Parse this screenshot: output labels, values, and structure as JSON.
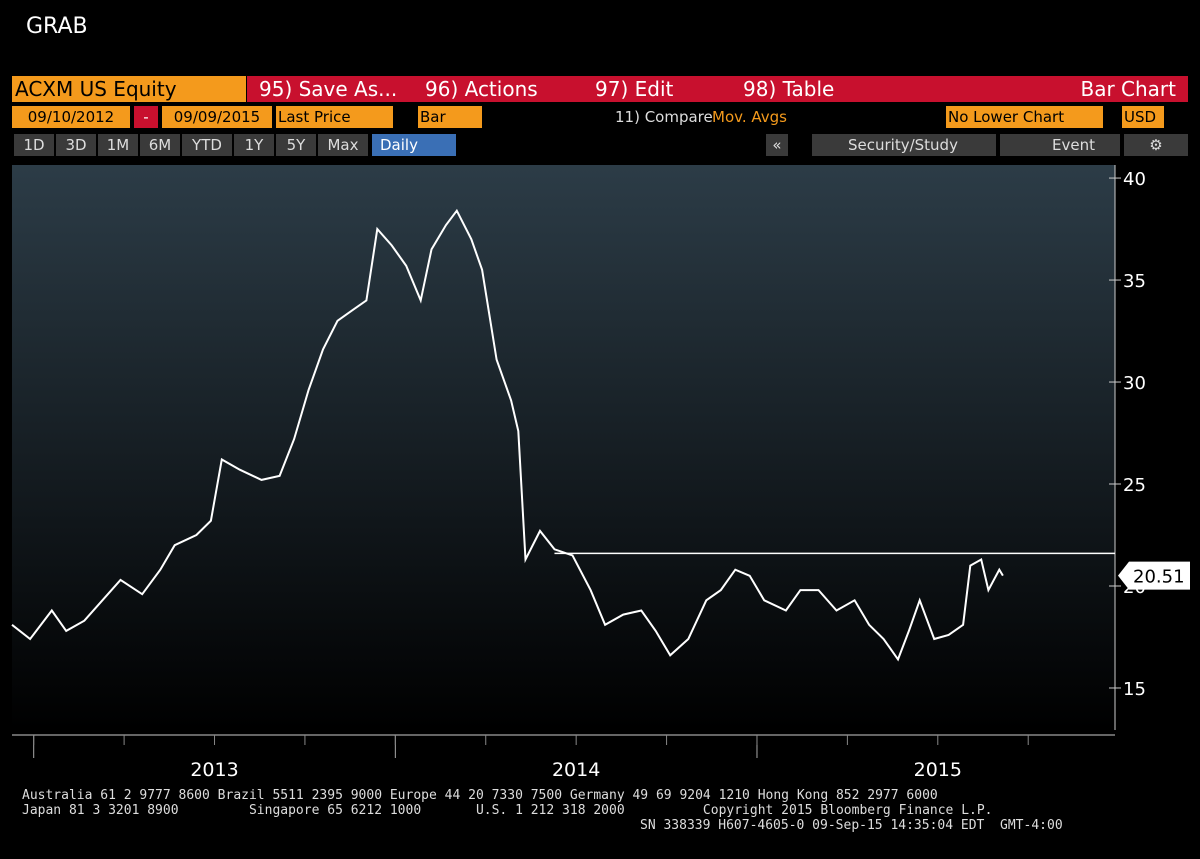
{
  "ui": {
    "window_title": "GRAB",
    "toolbar1": {
      "security": "ACXM US Equity",
      "buttons": [
        "95) Save As...",
        "96) Actions",
        "97) Edit",
        "98) Table"
      ],
      "chart_kind": "Bar Chart"
    },
    "toolbar2": {
      "start_date": "09/10/2012",
      "dash": "-",
      "end_date": "09/09/2015",
      "field": "Last Price",
      "style": "Bar",
      "compare": "11) Compare",
      "mov_avgs": "Mov. Avgs",
      "lower_chart": "No Lower Chart",
      "currency": "USD"
    },
    "toolbar3": {
      "periods": [
        "1D",
        "3D",
        "1M",
        "6M",
        "YTD",
        "1Y",
        "5Y",
        "Max"
      ],
      "frequency": "Daily",
      "collapse": "«",
      "security_study": "Security/Study",
      "event": "Event"
    },
    "footer": [
      "Australia 61 2 9777 8600 Brazil 5511 2395 9000 Europe 44 20 7330 7500 Germany 49 69 9204 1210 Hong Kong 852 2977 6000",
      "Japan 81 3 3201 8900         Singapore 65 6212 1000       U.S. 1 212 318 2000          Copyright 2015 Bloomberg Finance L.P.",
      "SN 338339 H607-4605-0 09-Sep-15 14:35:04 EDT  GMT-4:00"
    ]
  },
  "chart_data": {
    "type": "line",
    "x": [
      2012.94,
      2012.99,
      2013.05,
      2013.09,
      2013.14,
      2013.19,
      2013.24,
      2013.3,
      2013.35,
      2013.39,
      2013.45,
      2013.49,
      2013.52,
      2013.57,
      2013.63,
      2013.68,
      2013.72,
      2013.76,
      2013.8,
      2013.84,
      2013.88,
      2013.92,
      2013.95,
      2013.99,
      2014.03,
      2014.07,
      2014.1,
      2014.14,
      2014.17,
      2014.21,
      2014.24,
      2014.28,
      2014.32,
      2014.34,
      2014.36,
      2014.4,
      2014.44,
      2014.49,
      2014.54,
      2014.58,
      2014.63,
      2014.68,
      2014.72,
      2014.76,
      2014.81,
      2014.86,
      2014.9,
      2014.94,
      2014.98,
      2015.02,
      2015.08,
      2015.12,
      2015.17,
      2015.22,
      2015.27,
      2015.31,
      2015.35,
      2015.39,
      2015.42,
      2015.45,
      2015.49,
      2015.53,
      2015.57,
      2015.59,
      2015.62,
      2015.64,
      2015.67,
      2015.68
    ],
    "series": [
      {
        "name": "ACXM US Equity",
        "color": "#ffffff",
        "values": [
          18.1,
          17.4,
          18.8,
          17.8,
          18.3,
          19.3,
          20.3,
          19.6,
          20.8,
          22.0,
          22.5,
          23.2,
          26.2,
          25.7,
          25.2,
          25.4,
          27.2,
          29.6,
          31.6,
          33.0,
          33.5,
          34.0,
          37.5,
          36.7,
          35.7,
          34.0,
          36.5,
          37.7,
          38.4,
          37.0,
          35.5,
          31.1,
          29.1,
          27.6,
          21.3,
          22.7,
          21.8,
          21.5,
          19.8,
          18.1,
          18.6,
          18.8,
          17.8,
          16.6,
          17.4,
          19.3,
          19.8,
          20.8,
          20.5,
          19.3,
          18.8,
          19.8,
          19.8,
          18.8,
          19.3,
          18.1,
          17.4,
          16.4,
          17.8,
          19.3,
          17.4,
          17.6,
          18.1,
          21.0,
          21.3,
          19.8,
          20.8,
          20.51
        ]
      }
    ],
    "reference_line": 21.6,
    "xlim": [
      2012.94,
      2015.99
    ],
    "xticks": [
      {
        "value": 2013,
        "label": "2013"
      },
      {
        "value": 2014,
        "label": "2014"
      },
      {
        "value": 2015,
        "label": "2015"
      }
    ],
    "ylim": [
      12.94,
      40.64
    ],
    "yticks": [
      15,
      20,
      25,
      30,
      35,
      40
    ]
  }
}
